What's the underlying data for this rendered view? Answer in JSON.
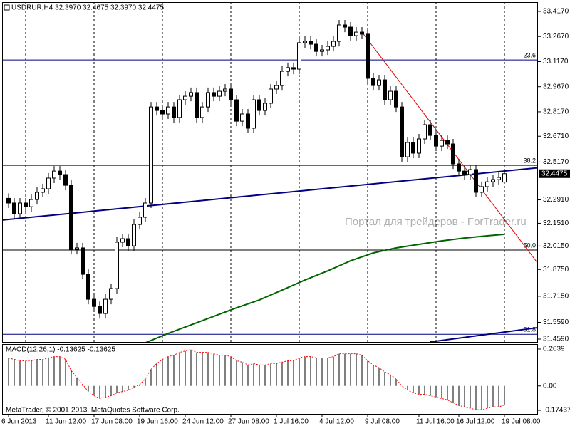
{
  "chart_data": [
    {
      "type": "candlestick",
      "title": "USDRUR,H4  32.3970 32.4675 32.3970 32.4475",
      "watermark": "Портал для трейдеров - ForTrader.ru",
      "categories": [
        "6 Jun 2013",
        null,
        null,
        null,
        null,
        null,
        null,
        "11 Jun 12:00",
        null,
        null,
        null,
        null,
        null,
        null,
        null,
        "17 Jun 08:00",
        null,
        null,
        null,
        null,
        null,
        null,
        null,
        "19 Jun 16:00",
        null,
        null,
        null,
        null,
        null,
        null,
        null,
        "24 Jun 12:00",
        null,
        null,
        null,
        null,
        null,
        null,
        null,
        "27 Jun 08:00",
        null,
        null,
        null,
        null,
        null,
        null,
        null,
        "1 Jul 16:00",
        null,
        null,
        null,
        null,
        null,
        null,
        null,
        "4 Jul 12:00",
        null,
        null,
        null,
        null,
        null,
        null,
        null,
        "9 Jul 08:00",
        null,
        null,
        null,
        null,
        null,
        null,
        null,
        null,
        "11 Jul 16:00",
        null,
        null,
        null,
        null,
        null,
        null,
        "16 Jul 12:00",
        null,
        null,
        null,
        null,
        null,
        null,
        null,
        "19 Jul 08:00"
      ],
      "open": [
        32.3,
        32.272,
        32.208,
        32.272,
        32.25,
        32.293,
        32.336,
        32.357,
        32.421,
        32.463,
        32.442,
        32.378,
        31.995,
        32.004,
        31.846,
        31.697,
        31.654,
        31.612,
        31.697,
        31.761,
        32.038,
        32.059,
        32.016,
        32.144,
        32.187,
        32.272,
        32.846,
        32.825,
        32.804,
        32.846,
        32.783,
        32.889,
        32.91,
        32.932,
        32.783,
        32.846,
        32.932,
        32.91,
        32.94,
        32.953,
        32.889,
        32.761,
        32.804,
        32.719,
        32.889,
        32.825,
        32.868,
        32.953,
        32.974,
        33.059,
        33.081,
        33.072,
        33.23,
        33.238,
        33.221,
        33.178,
        33.187,
        33.208,
        33.238,
        33.336,
        33.323,
        33.272,
        33.293,
        33.281,
        33.017,
        32.974,
        33.008,
        32.889,
        32.94,
        32.846,
        32.548,
        32.634,
        32.57,
        32.655,
        32.74,
        32.676,
        32.612,
        32.646,
        32.625,
        32.506,
        32.463,
        32.442,
        32.472,
        32.336,
        32.37,
        32.399,
        32.412,
        32.397
      ],
      "high": [
        32.33,
        32.302,
        32.302,
        32.302,
        32.323,
        32.366,
        32.387,
        32.451,
        32.493,
        32.493,
        32.472,
        32.408,
        32.034,
        32.034,
        31.876,
        31.727,
        31.684,
        31.727,
        31.791,
        32.068,
        32.089,
        32.089,
        32.174,
        32.217,
        32.302,
        32.876,
        32.876,
        32.855,
        32.876,
        32.876,
        32.919,
        32.94,
        32.962,
        32.962,
        32.876,
        32.962,
        32.962,
        32.97,
        32.983,
        32.983,
        32.919,
        32.834,
        32.834,
        32.919,
        32.919,
        32.898,
        32.983,
        33.004,
        33.089,
        33.111,
        33.111,
        33.26,
        33.268,
        33.268,
        33.251,
        33.217,
        33.238,
        33.268,
        33.366,
        33.366,
        33.353,
        33.323,
        33.323,
        33.311,
        33.047,
        33.038,
        33.038,
        32.97,
        32.97,
        32.876,
        32.664,
        32.664,
        32.685,
        32.77,
        32.77,
        32.706,
        32.676,
        32.676,
        32.655,
        32.536,
        32.493,
        32.502,
        32.502,
        32.4,
        32.429,
        32.442,
        32.455,
        32.4675
      ],
      "low": [
        32.242,
        32.178,
        32.178,
        32.22,
        32.22,
        32.263,
        32.306,
        32.327,
        32.391,
        32.412,
        32.348,
        31.965,
        31.965,
        31.816,
        31.667,
        31.624,
        31.582,
        31.582,
        31.667,
        31.731,
        32.008,
        31.986,
        31.986,
        32.114,
        32.157,
        32.242,
        32.795,
        32.774,
        32.774,
        32.753,
        32.753,
        32.859,
        32.88,
        32.753,
        32.753,
        32.816,
        32.88,
        32.88,
        32.91,
        32.859,
        32.731,
        32.731,
        32.689,
        32.689,
        32.795,
        32.795,
        32.838,
        32.923,
        32.944,
        33.029,
        33.042,
        33.042,
        33.2,
        33.191,
        33.148,
        33.148,
        33.157,
        33.178,
        33.208,
        33.293,
        33.242,
        33.242,
        33.251,
        32.987,
        32.944,
        32.944,
        32.859,
        32.859,
        32.816,
        32.518,
        32.518,
        32.54,
        32.54,
        32.625,
        32.646,
        32.582,
        32.582,
        32.595,
        32.476,
        32.433,
        32.412,
        32.412,
        32.306,
        32.306,
        32.34,
        32.369,
        32.382,
        32.397
      ],
      "close": [
        32.272,
        32.208,
        32.272,
        32.25,
        32.293,
        32.336,
        32.357,
        32.421,
        32.463,
        32.442,
        32.378,
        31.995,
        32.004,
        31.846,
        31.697,
        31.654,
        31.612,
        31.697,
        31.761,
        32.038,
        32.059,
        32.016,
        32.144,
        32.187,
        32.272,
        32.846,
        32.825,
        32.804,
        32.846,
        32.783,
        32.889,
        32.91,
        32.932,
        32.783,
        32.846,
        32.932,
        32.91,
        32.94,
        32.953,
        32.889,
        32.761,
        32.804,
        32.719,
        32.889,
        32.825,
        32.868,
        32.953,
        32.974,
        33.059,
        33.081,
        33.072,
        33.23,
        33.238,
        33.221,
        33.178,
        33.187,
        33.208,
        33.238,
        33.336,
        33.323,
        33.272,
        33.293,
        33.281,
        33.017,
        32.974,
        33.008,
        32.889,
        32.94,
        32.846,
        32.548,
        32.634,
        32.57,
        32.655,
        32.74,
        32.676,
        32.612,
        32.646,
        32.625,
        32.506,
        32.463,
        32.442,
        32.472,
        32.336,
        32.37,
        32.399,
        32.412,
        32.425,
        32.4475
      ],
      "ylim": [
        31.442,
        33.485
      ],
      "yticks": [
        {
          "value": 33.417,
          "label": "33.4170"
        },
        {
          "value": 33.267,
          "label": "33.2670"
        },
        {
          "value": 33.117,
          "label": "33.1170"
        },
        {
          "value": 32.967,
          "label": "32.9670"
        },
        {
          "value": 32.817,
          "label": "32.8170"
        },
        {
          "value": 32.671,
          "label": "32.6710"
        },
        {
          "value": 32.517,
          "label": "32.5170"
        },
        {
          "value": 32.291,
          "label": "32.2910"
        },
        {
          "value": 32.151,
          "label": "32.1510"
        },
        {
          "value": 32.015,
          "label": "32.0150"
        },
        {
          "value": 31.875,
          "label": "31.8750"
        },
        {
          "value": 31.715,
          "label": "31.7150"
        },
        {
          "value": 31.559,
          "label": "31.5590"
        },
        {
          "value": 31.459,
          "label": "31.4590"
        }
      ],
      "up_color": "#ffffff",
      "down_color": "#000000",
      "outline_color": "#000000",
      "grid": true,
      "levels": [
        {
          "label": "23.6",
          "value": 33.127,
          "color": "#000080"
        },
        {
          "label": "38.2",
          "value": 32.497,
          "color": "#000080"
        },
        {
          "label": "50.0",
          "value": 31.991,
          "color": "#000000"
        },
        {
          "label": "61.8",
          "value": 31.488,
          "color": "#000080"
        }
      ],
      "trendlines": [
        {
          "x": [
            0,
            87
          ],
          "values": [
            32.174,
            32.463
          ],
          "color": "#000080",
          "extend": "both"
        },
        {
          "x": [
            62,
            87
          ],
          "values": [
            33.293,
            32.174
          ],
          "color": "#e00000",
          "extend": "right"
        },
        {
          "x": [
            74,
            87
          ],
          "values": [
            31.442,
            31.501
          ],
          "color": "#000080",
          "extend": "right"
        }
      ],
      "ma": {
        "color": "#006400",
        "x": [
          24,
          28,
          32,
          36,
          40,
          44,
          48,
          52,
          56,
          60,
          64,
          68,
          72,
          76,
          80,
          84,
          87
        ],
        "values": [
          31.437,
          31.493,
          31.544,
          31.595,
          31.646,
          31.693,
          31.752,
          31.812,
          31.867,
          31.927,
          31.974,
          32.004,
          32.025,
          32.046,
          32.063,
          32.076,
          32.085
        ]
      }
    },
    {
      "type": "macd",
      "title": "MACD(12,26,1) -0.13625 -0.13625",
      "footer": "MetaTrader, © 2001-2013, MetaQuotes Software Corp.",
      "values": [
        0.2,
        0.19,
        0.18,
        0.18,
        0.18,
        0.19,
        0.19,
        0.2,
        0.21,
        0.21,
        0.19,
        0.11,
        0.06,
        0.01,
        -0.04,
        -0.07,
        -0.09,
        -0.08,
        -0.07,
        -0.05,
        -0.04,
        -0.03,
        -0.01,
        0.01,
        0.05,
        0.12,
        0.16,
        0.19,
        0.21,
        0.22,
        0.24,
        0.25,
        0.26,
        0.24,
        0.24,
        0.24,
        0.23,
        0.22,
        0.22,
        0.21,
        0.18,
        0.17,
        0.15,
        0.16,
        0.15,
        0.15,
        0.16,
        0.16,
        0.17,
        0.18,
        0.18,
        0.2,
        0.21,
        0.21,
        0.2,
        0.2,
        0.2,
        0.21,
        0.23,
        0.23,
        0.23,
        0.23,
        0.22,
        0.18,
        0.15,
        0.13,
        0.1,
        0.08,
        0.05,
        0.0,
        -0.03,
        -0.05,
        -0.06,
        -0.06,
        -0.07,
        -0.08,
        -0.09,
        -0.1,
        -0.12,
        -0.14,
        -0.15,
        -0.16,
        -0.17,
        -0.17,
        -0.16,
        -0.15,
        -0.15,
        -0.13625
      ],
      "color": "#000000",
      "signal_color": "#ff0000",
      "ylim": [
        -0.205,
        0.2995
      ],
      "yticks": [
        0.2639,
        {
          "value": 0,
          "label": "0.00"
        },
        -0.17437
      ]
    }
  ]
}
